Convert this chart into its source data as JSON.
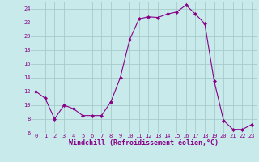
{
  "x": [
    0,
    1,
    2,
    3,
    4,
    5,
    6,
    7,
    8,
    9,
    10,
    11,
    12,
    13,
    14,
    15,
    16,
    17,
    18,
    19,
    20,
    21,
    22,
    23
  ],
  "y": [
    12,
    11,
    8,
    10,
    9.5,
    8.5,
    8.5,
    8.5,
    10.5,
    14,
    19.5,
    22.5,
    22.8,
    22.7,
    23.2,
    23.5,
    24.5,
    23.2,
    21.8,
    13.5,
    7.8,
    6.5,
    6.5,
    7.2
  ],
  "line_color": "#880088",
  "marker_color": "#880088",
  "bg_color": "#c8eaea",
  "grid_color": "#a8caca",
  "xlabel": "Windchill (Refroidissement éolien,°C)",
  "xlabel_color": "#880088",
  "tick_color": "#880088",
  "ylim": [
    6,
    25
  ],
  "yticks": [
    6,
    8,
    10,
    12,
    14,
    16,
    18,
    20,
    22,
    24
  ],
  "xticks": [
    0,
    1,
    2,
    3,
    4,
    5,
    6,
    7,
    8,
    9,
    10,
    11,
    12,
    13,
    14,
    15,
    16,
    17,
    18,
    19,
    20,
    21,
    22,
    23
  ],
  "tick_fontsize": 5,
  "xlabel_fontsize": 6,
  "linewidth": 0.8,
  "markersize": 2.0
}
